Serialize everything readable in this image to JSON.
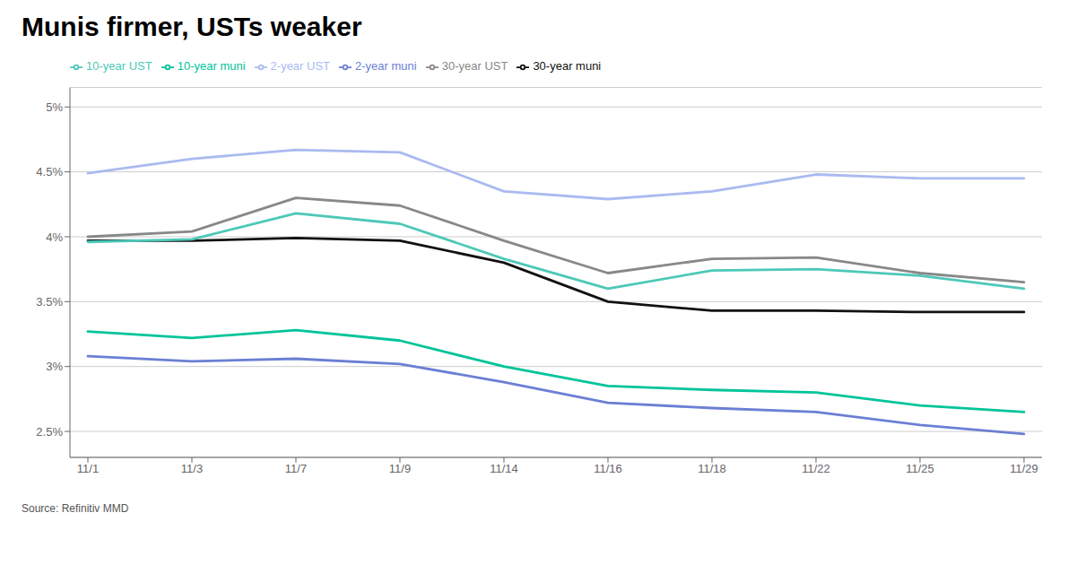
{
  "chart_data": {
    "type": "line",
    "title": "Munis firmer, USTs weaker",
    "source": "Source: Refinitiv MMD",
    "categories": [
      "11/1",
      "11/3",
      "11/7",
      "11/9",
      "11/14",
      "11/16",
      "11/18",
      "11/22",
      "11/25",
      "11/29"
    ],
    "series": [
      {
        "name": "2-year muni",
        "color": "#6B7FD4",
        "values": [
          3.08,
          3.04,
          3.06,
          3.02,
          2.88,
          2.72,
          2.68,
          2.65,
          2.55,
          2.48
        ]
      },
      {
        "name": "10-year muni",
        "color": "#00C49A",
        "values": [
          3.27,
          3.22,
          3.28,
          3.2,
          3.0,
          2.85,
          2.82,
          2.8,
          2.7,
          2.65
        ]
      },
      {
        "name": "30-year muni",
        "color": "#111111",
        "values": [
          3.97,
          3.97,
          3.99,
          3.97,
          3.8,
          3.5,
          3.43,
          3.43,
          3.42,
          3.42
        ]
      },
      {
        "name": "2-year UST",
        "color": "#AABAF0",
        "values": [
          4.49,
          4.6,
          4.67,
          4.65,
          4.35,
          4.29,
          4.35,
          4.48,
          4.45,
          4.45
        ]
      },
      {
        "name": "10-year UST",
        "color": "#4DC8B8",
        "values": [
          3.96,
          3.98,
          4.18,
          4.1,
          3.83,
          3.6,
          3.74,
          3.75,
          3.7,
          3.6
        ]
      },
      {
        "name": "30-year UST",
        "color": "#888888",
        "values": [
          4.0,
          4.04,
          4.3,
          4.24,
          3.97,
          3.72,
          3.83,
          3.84,
          3.72,
          3.65
        ]
      }
    ],
    "ylim": [
      2.3,
      5.15
    ],
    "yticks": [
      {
        "value": 2.5,
        "label": "2.5%"
      },
      {
        "value": 3.0,
        "label": "3%"
      },
      {
        "value": 3.5,
        "label": "3.5%"
      },
      {
        "value": 4.0,
        "label": "4%"
      },
      {
        "value": 4.5,
        "label": "4.5%"
      },
      {
        "value": 5.0,
        "label": "5%"
      }
    ],
    "grid": true,
    "legend": "top"
  }
}
